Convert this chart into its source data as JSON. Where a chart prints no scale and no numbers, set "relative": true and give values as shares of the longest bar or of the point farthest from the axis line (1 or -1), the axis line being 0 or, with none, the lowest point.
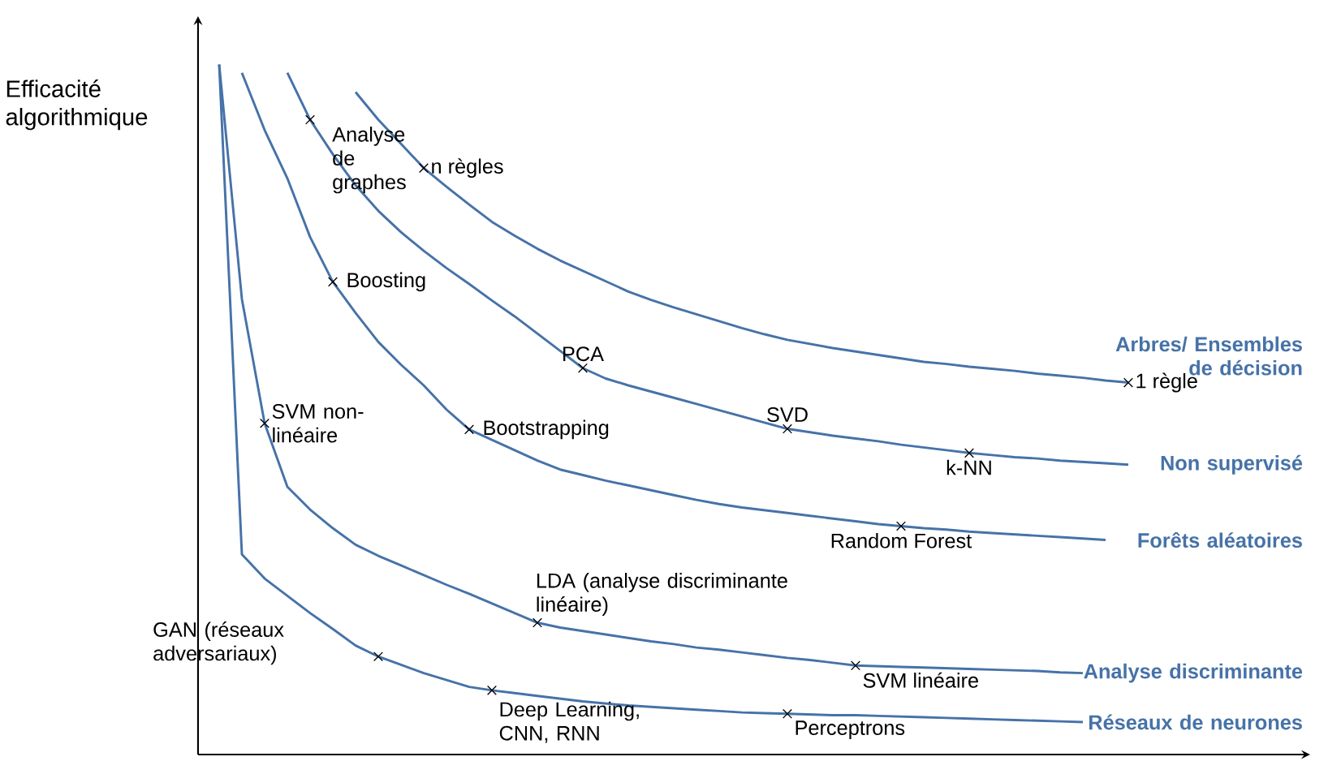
{
  "chart_data": {
    "type": "line",
    "relative": true,
    "ylabel": "Efficacité algorithmique",
    "categories": [
      null,
      null,
      null,
      null,
      null,
      null,
      null,
      null,
      null,
      null,
      null,
      null,
      null,
      null,
      null,
      null,
      null,
      null,
      null,
      null,
      null,
      null,
      null,
      null,
      null,
      null,
      null,
      null,
      null,
      null,
      null,
      null,
      null,
      null,
      null,
      null,
      null,
      null,
      null,
      null,
      null
    ],
    "series": [
      {
        "name": "Arbres/ Ensembles de décision",
        "color": "#4672a8",
        "values": [
          null,
          null,
          null,
          null,
          null,
          null,
          0.96,
          0.92,
          0.885,
          0.85,
          0.823,
          0.797,
          0.772,
          0.752,
          0.733,
          0.716,
          0.701,
          0.686,
          0.671,
          0.659,
          0.648,
          0.638,
          0.628,
          0.618,
          0.609,
          0.601,
          0.595,
          0.589,
          0.584,
          0.579,
          0.574,
          0.569,
          0.566,
          0.562,
          0.559,
          0.556,
          0.552,
          0.549,
          0.546,
          0.542,
          0.539
        ]
      },
      {
        "name": "Non supervisé",
        "color": "#4672a8",
        "values": [
          null,
          null,
          null,
          0.988,
          0.92,
          0.87,
          0.825,
          0.788,
          0.757,
          0.73,
          0.705,
          0.682,
          0.658,
          0.635,
          0.61,
          0.585,
          0.56,
          0.545,
          0.535,
          0.526,
          0.517,
          0.508,
          0.499,
          0.49,
          0.481,
          0.472,
          0.467,
          0.462,
          0.458,
          0.454,
          0.449,
          0.445,
          0.441,
          0.437,
          0.434,
          0.431,
          0.429,
          0.426,
          0.424,
          0.422,
          0.42
        ]
      },
      {
        "name": "Forêts aléatoires",
        "color": "#4672a8",
        "values": [
          null,
          0.988,
          0.905,
          0.835,
          0.75,
          0.685,
          0.64,
          0.598,
          0.565,
          0.535,
          0.5,
          0.471,
          0.456,
          0.441,
          0.426,
          0.413,
          0.405,
          0.397,
          0.39,
          0.383,
          0.376,
          0.369,
          0.363,
          0.358,
          0.354,
          0.35,
          0.346,
          0.342,
          0.338,
          0.334,
          0.331,
          0.328,
          0.326,
          0.323,
          0.321,
          0.319,
          0.317,
          0.315,
          0.313,
          0.311,
          null
        ]
      },
      {
        "name": "Analyse discriminante",
        "color": "#4672a8",
        "values": [
          1.0,
          0.66,
          0.48,
          0.388,
          0.355,
          0.328,
          0.304,
          0.288,
          0.274,
          0.26,
          0.246,
          0.233,
          0.219,
          0.205,
          0.191,
          0.184,
          0.179,
          0.174,
          0.169,
          0.164,
          0.16,
          0.155,
          0.152,
          0.148,
          0.144,
          0.14,
          0.137,
          0.133,
          0.129,
          0.128,
          0.127,
          0.126,
          0.125,
          0.124,
          0.123,
          0.122,
          0.121,
          0.119,
          0.118,
          null,
          null
        ]
      },
      {
        "name": "Réseaux de neurones",
        "color": "#4672a8",
        "values": [
          1.0,
          0.29,
          0.255,
          0.23,
          0.205,
          0.182,
          0.158,
          0.142,
          0.13,
          0.118,
          0.108,
          0.098,
          0.093,
          0.089,
          0.085,
          0.081,
          0.077,
          0.074,
          0.071,
          0.069,
          0.067,
          0.065,
          0.063,
          0.061,
          0.06,
          0.059,
          0.058,
          0.057,
          0.057,
          0.056,
          0.055,
          0.054,
          0.053,
          0.052,
          0.051,
          0.05,
          0.049,
          0.048,
          0.047,
          null,
          null
        ]
      }
    ],
    "annotations": [
      "Analyse de graphes",
      "Boosting",
      "n règles",
      "Bootstrapping",
      "PCA",
      "SVD",
      "Random Forest",
      "k-NN",
      "1 règle",
      "SVM non-linéaire",
      "GAN (réseaux adversariaux)",
      "Deep Learning, CNN, RNN",
      "LDA (analyse discriminante linéaire)",
      "Perceptrons",
      "SVM linéaire"
    ]
  }
}
